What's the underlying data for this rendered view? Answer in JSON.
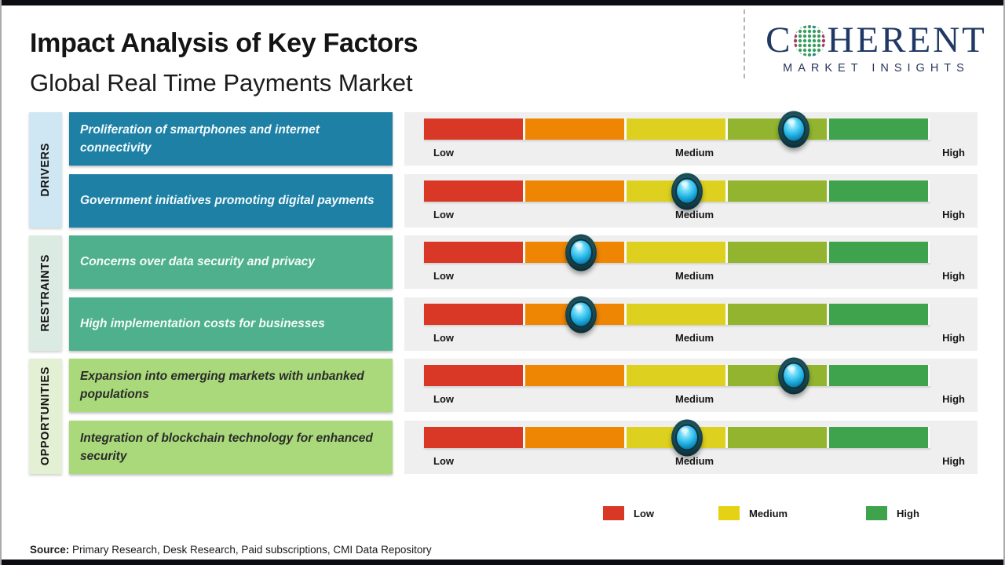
{
  "header": {
    "title": "Impact Analysis of Key Factors",
    "subtitle": "Global Real Time Payments Market"
  },
  "logo": {
    "name_start": "C",
    "name_end": "HERENT",
    "tagline": "MARKET INSIGHTS",
    "brand_color": "#1f3864"
  },
  "scale_labels": {
    "low": "Low",
    "medium": "Medium",
    "high": "High"
  },
  "groups": [
    {
      "label": "DRIVERS",
      "bg": "#cfe7f3",
      "box_color": "#1e80a5",
      "items": [
        {
          "text": "Proliferation of smartphones and internet connectivity"
        },
        {
          "text": "Government initiatives promoting digital payments"
        }
      ]
    },
    {
      "label": "RESTRAINTS",
      "bg": "#dcebe2",
      "box_color": "#4fb08d",
      "items": [
        {
          "text": "Concerns over data security and privacy"
        },
        {
          "text": "High implementation costs for businesses"
        }
      ]
    },
    {
      "label": "OPPORTUNITIES",
      "bg": "#e4f0d3",
      "box_color": "#a9d97a",
      "items": [
        {
          "text": "Expansion into emerging markets with unbanked populations"
        },
        {
          "text": "Integration of blockchain technology for enhanced security"
        }
      ]
    }
  ],
  "legend": [
    {
      "label": "Low",
      "color": "#da3826"
    },
    {
      "label": "Medium",
      "color": "#e6d214"
    },
    {
      "label": "High",
      "color": "#3fa34d"
    }
  ],
  "source": {
    "label": "Source:",
    "text": " Primary Research, Desk Research, Paid subscriptions, CMI Data Repository"
  },
  "chart_data": {
    "type": "table",
    "title": "Impact Analysis of Key Factors",
    "subtitle": "Global Real Time Payments Market",
    "scale": {
      "range": [
        0,
        100
      ],
      "tick_labels": [
        "Low",
        "Medium",
        "High"
      ],
      "segment_colors": [
        "#da3826",
        "#ee8503",
        "#ddd01e",
        "#92b42e",
        "#3fa34d"
      ],
      "segments_per_bar": 5
    },
    "rows": [
      {
        "group": "Drivers",
        "factor": "Proliferation of smartphones and internet connectivity",
        "impact_percent": 73,
        "impact_level": "Medium-High"
      },
      {
        "group": "Drivers",
        "factor": "Government initiatives promoting digital payments",
        "impact_percent": 52,
        "impact_level": "Medium"
      },
      {
        "group": "Restraints",
        "factor": "Concerns over data security and privacy",
        "impact_percent": 31,
        "impact_level": "Low-Medium"
      },
      {
        "group": "Restraints",
        "factor": "High implementation costs for businesses",
        "impact_percent": 31,
        "impact_level": "Low-Medium"
      },
      {
        "group": "Opportunities",
        "factor": "Expansion into emerging markets with unbanked populations",
        "impact_percent": 73,
        "impact_level": "Medium-High"
      },
      {
        "group": "Opportunities",
        "factor": "Integration of blockchain technology for enhanced security",
        "impact_percent": 52,
        "impact_level": "Medium"
      }
    ],
    "legend_entries": [
      "Low",
      "Medium",
      "High"
    ],
    "legend_position": "bottom-right"
  }
}
